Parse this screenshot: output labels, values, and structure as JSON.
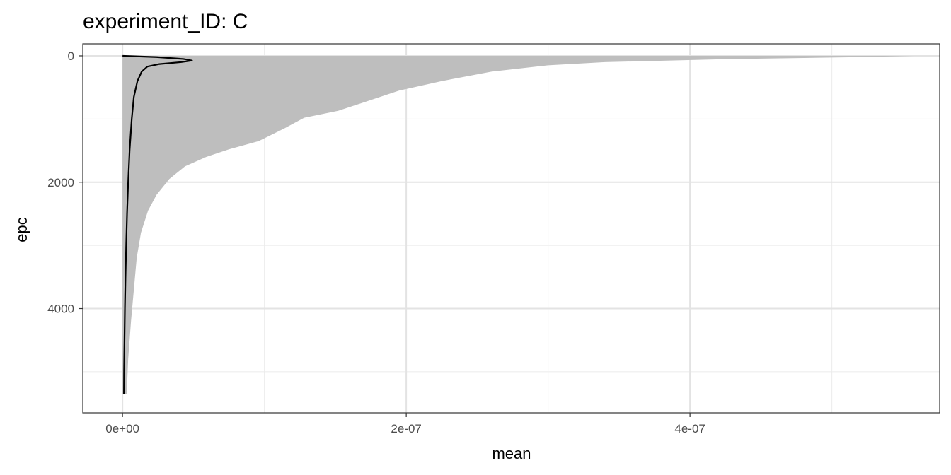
{
  "chart_data": {
    "type": "area",
    "title": "experiment_ID: C",
    "xlabel": "mean",
    "ylabel": "epc",
    "xlim": [
      -2.8e-08,
      5.76e-07
    ],
    "ylim": [
      5650,
      -190
    ],
    "y_reversed": true,
    "x_ticks": [
      {
        "value": 0,
        "label": "0e+00"
      },
      {
        "value": 2e-07,
        "label": "2e-07"
      },
      {
        "value": 4e-07,
        "label": "4e-07"
      }
    ],
    "y_ticks": [
      {
        "value": 0,
        "label": "0"
      },
      {
        "value": 2000,
        "label": "2000"
      },
      {
        "value": 4000,
        "label": "4000"
      }
    ],
    "x_minor": [
      1e-07,
      3e-07,
      5e-07
    ],
    "y_minor": [
      1000,
      3000,
      5000
    ],
    "grid": true,
    "ribbon": {
      "color": "#bebebe",
      "lower": 0,
      "upper": [
        {
          "epc": 0,
          "mean": 5.58e-07
        },
        {
          "epc": 20,
          "mean": 5.2e-07
        },
        {
          "epc": 50,
          "mean": 4.3e-07
        },
        {
          "epc": 100,
          "mean": 3.4e-07
        },
        {
          "epc": 150,
          "mean": 3e-07
        },
        {
          "epc": 250,
          "mean": 2.6e-07
        },
        {
          "epc": 400,
          "mean": 2.25e-07
        },
        {
          "epc": 550,
          "mean": 1.95e-07
        },
        {
          "epc": 700,
          "mean": 1.75e-07
        },
        {
          "epc": 870,
          "mean": 1.52e-07
        },
        {
          "epc": 980,
          "mean": 1.28e-07
        },
        {
          "epc": 1150,
          "mean": 1.14e-07
        },
        {
          "epc": 1350,
          "mean": 9.6e-08
        },
        {
          "epc": 1480,
          "mean": 7.5e-08
        },
        {
          "epc": 1600,
          "mean": 5.9e-08
        },
        {
          "epc": 1750,
          "mean": 4.4e-08
        },
        {
          "epc": 1950,
          "mean": 3.3e-08
        },
        {
          "epc": 2200,
          "mean": 2.4e-08
        },
        {
          "epc": 2450,
          "mean": 1.8e-08
        },
        {
          "epc": 2800,
          "mean": 1.3e-08
        },
        {
          "epc": 3200,
          "mean": 1e-08
        },
        {
          "epc": 3700,
          "mean": 8e-09
        },
        {
          "epc": 4200,
          "mean": 6e-09
        },
        {
          "epc": 4800,
          "mean": 4e-09
        },
        {
          "epc": 5350,
          "mean": 3e-09
        }
      ]
    },
    "line": {
      "color": "#000000",
      "points": [
        {
          "epc": 0,
          "mean": 0
        },
        {
          "epc": 20,
          "mean": 2.4e-08
        },
        {
          "epc": 50,
          "mean": 4.3e-08
        },
        {
          "epc": 75,
          "mean": 4.9e-08
        },
        {
          "epc": 100,
          "mean": 4.1e-08
        },
        {
          "epc": 130,
          "mean": 2.6e-08
        },
        {
          "epc": 170,
          "mean": 1.75e-08
        },
        {
          "epc": 250,
          "mean": 1.35e-08
        },
        {
          "epc": 400,
          "mean": 1.05e-08
        },
        {
          "epc": 650,
          "mean": 8e-09
        },
        {
          "epc": 1000,
          "mean": 6.5e-09
        },
        {
          "epc": 1500,
          "mean": 5e-09
        },
        {
          "epc": 2000,
          "mean": 4e-09
        },
        {
          "epc": 2500,
          "mean": 3.2e-09
        },
        {
          "epc": 3000,
          "mean": 2.6e-09
        },
        {
          "epc": 3500,
          "mean": 2.1e-09
        },
        {
          "epc": 4000,
          "mean": 1.7e-09
        },
        {
          "epc": 4500,
          "mean": 1.4e-09
        },
        {
          "epc": 5000,
          "mean": 1.1e-09
        },
        {
          "epc": 5350,
          "mean": 1e-09
        }
      ]
    }
  }
}
